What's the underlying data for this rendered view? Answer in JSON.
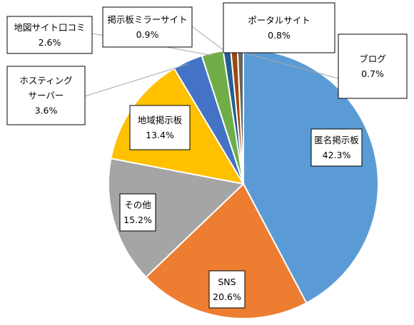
{
  "chart_data": {
    "type": "pie",
    "title": "",
    "legend": "none",
    "slices": [
      {
        "name": "匿名掲示板",
        "value": 42.3,
        "label": "42.3%",
        "color": "#5b9bd5"
      },
      {
        "name": "SNS",
        "value": 20.6,
        "label": "20.6%",
        "color": "#ed7d31"
      },
      {
        "name": "その他",
        "value": 15.2,
        "label": "15.2%",
        "color": "#a5a5a5"
      },
      {
        "name": "地域掲示板",
        "value": 13.4,
        "label": "13.4%",
        "color": "#ffc000"
      },
      {
        "name": "ホスティングサーバー",
        "lines": [
          "ホスティング",
          "サーバー"
        ],
        "value": 3.6,
        "label": "3.6%",
        "color": "#4472c4"
      },
      {
        "name": "地図サイト口コミ",
        "value": 2.6,
        "label": "2.6%",
        "color": "#70ad47"
      },
      {
        "name": "掲示板ミラーサイト",
        "value": 0.9,
        "label": "0.9%",
        "color": "#255e91"
      },
      {
        "name": "ポータルサイト",
        "value": 0.8,
        "label": "0.8%",
        "color": "#9e480e"
      },
      {
        "name": "ブログ",
        "value": 0.7,
        "label": "0.7%",
        "color": "#636363"
      }
    ]
  }
}
